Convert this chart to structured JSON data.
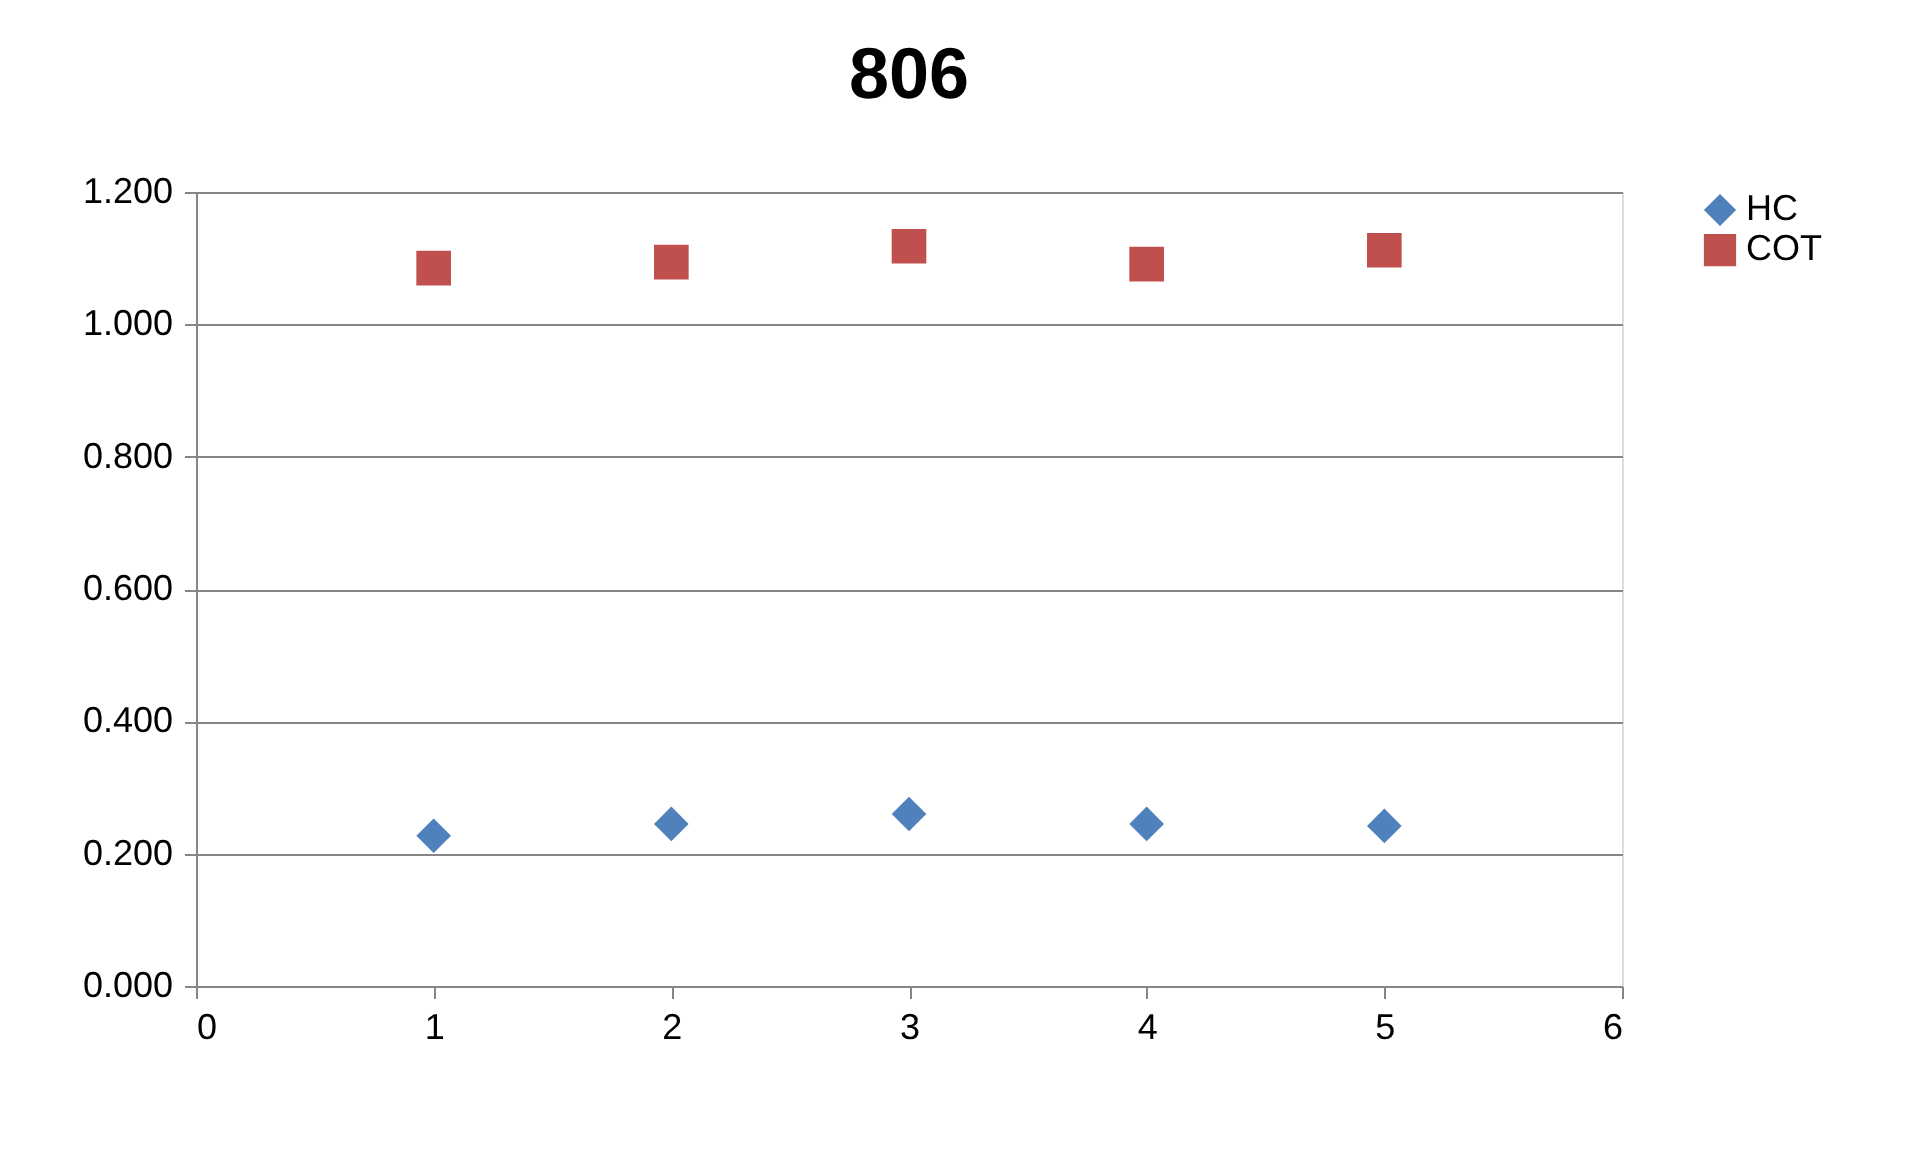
{
  "chart_data": {
    "type": "scatter",
    "title": "806",
    "x": [
      1,
      2,
      3,
      4,
      5
    ],
    "series": [
      {
        "name": "HC",
        "color": "#4f81bd",
        "marker": "diamond",
        "values": [
          0.227,
          0.245,
          0.26,
          0.245,
          0.242
        ]
      },
      {
        "name": "COT",
        "color": "#c0504d",
        "marker": "square",
        "values": [
          1.085,
          1.094,
          1.118,
          1.091,
          1.112
        ]
      }
    ],
    "xlim": [
      0,
      6
    ],
    "xticks": [
      0,
      1,
      2,
      3,
      4,
      5,
      6
    ],
    "ylim": [
      0,
      1.2
    ],
    "yticks": [
      {
        "value": 0,
        "label": "0.000"
      },
      {
        "value": 0.2,
        "label": "0.200"
      },
      {
        "value": 0.4,
        "label": "0.400"
      },
      {
        "value": 0.6,
        "label": "0.600"
      },
      {
        "value": 0.8,
        "label": "0.800"
      },
      {
        "value": 1.0,
        "label": "1.000"
      },
      {
        "value": 1.2,
        "label": "1.200"
      }
    ],
    "grid": "y",
    "legend": "right"
  }
}
